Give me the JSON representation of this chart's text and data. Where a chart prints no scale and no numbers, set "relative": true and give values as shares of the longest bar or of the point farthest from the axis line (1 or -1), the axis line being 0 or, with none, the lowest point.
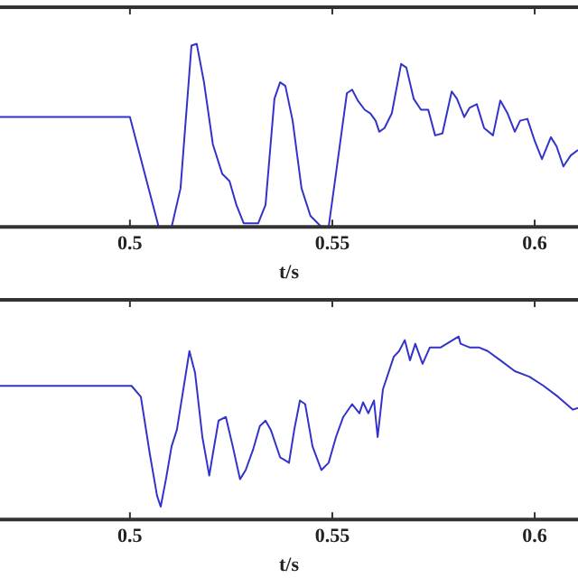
{
  "chart_data": [
    {
      "type": "line",
      "xlabel": "t/s",
      "relative": true,
      "xlim": [
        0.4679,
        0.6107
      ],
      "xticks": [
        0.5,
        0.55,
        0.6
      ],
      "grid": false,
      "legend": false,
      "marker": "none",
      "line_style": "solid",
      "series": [
        {
          "color": "#3333cc",
          "x": [
            0.4679,
            0.5,
            0.5071,
            0.5103,
            0.5125,
            0.5152,
            0.5165,
            0.5183,
            0.5205,
            0.5228,
            0.5246,
            0.5263,
            0.5281,
            0.5317,
            0.5335,
            0.5357,
            0.5371,
            0.5384,
            0.5402,
            0.5424,
            0.5446,
            0.5473,
            0.5491,
            0.5509,
            0.5536,
            0.5549,
            0.5563,
            0.558,
            0.5594,
            0.5607,
            0.5616,
            0.5629,
            0.5647,
            0.567,
            0.5683,
            0.5701,
            0.5719,
            0.5737,
            0.5754,
            0.5772,
            0.5795,
            0.5808,
            0.5826,
            0.5839,
            0.5857,
            0.5875,
            0.5897,
            0.5915,
            0.5933,
            0.5951,
            0.5964,
            0.5982,
            0.6,
            0.6018,
            0.604,
            0.6054,
            0.6071,
            0.6089,
            0.6107
          ],
          "values": [
            0.6,
            0.6,
            0,
            0,
            0.21,
            0.99,
            1,
            0.79,
            0.45,
            0.29,
            0.25,
            0.12,
            0.02,
            0.02,
            0.12,
            0.7,
            0.79,
            0.77,
            0.58,
            0.21,
            0.06,
            0,
            0,
            0.29,
            0.73,
            0.75,
            0.69,
            0.64,
            0.62,
            0.58,
            0.52,
            0.54,
            0.62,
            0.89,
            0.87,
            0.7,
            0.64,
            0.64,
            0.5,
            0.51,
            0.74,
            0.7,
            0.6,
            0.65,
            0.67,
            0.54,
            0.5,
            0.69,
            0.62,
            0.52,
            0.58,
            0.59,
            0.47,
            0.37,
            0.49,
            0.44,
            0.33,
            0.39,
            0.42
          ]
        }
      ]
    },
    {
      "type": "line",
      "xlabel": "t/s",
      "relative": true,
      "xlim": [
        0.4679,
        0.6107
      ],
      "xticks": [
        0.5,
        0.55,
        0.6
      ],
      "grid": false,
      "legend": false,
      "marker": "none",
      "line_style": "solid",
      "series": [
        {
          "color": "#3333cc",
          "x": [
            0.4679,
            0.5004,
            0.5027,
            0.5049,
            0.5067,
            0.5076,
            0.5089,
            0.5103,
            0.5116,
            0.5129,
            0.5147,
            0.5161,
            0.5179,
            0.5196,
            0.5205,
            0.5219,
            0.5237,
            0.5254,
            0.5272,
            0.5286,
            0.5304,
            0.5321,
            0.5335,
            0.5348,
            0.5371,
            0.5393,
            0.5406,
            0.542,
            0.5433,
            0.5451,
            0.5473,
            0.5491,
            0.5509,
            0.5527,
            0.5549,
            0.5567,
            0.5576,
            0.5589,
            0.5603,
            0.5612,
            0.5625,
            0.5652,
            0.5665,
            0.5679,
            0.5692,
            0.5705,
            0.5723,
            0.5741,
            0.5768,
            0.5812,
            0.5817,
            0.5839,
            0.5862,
            0.5884,
            0.5915,
            0.5951,
            0.5987,
            0.6022,
            0.6058,
            0.6094,
            0.6107
          ],
          "values": [
            0.73,
            0.73,
            0.67,
            0.36,
            0.13,
            0.07,
            0.22,
            0.4,
            0.49,
            0.67,
            0.92,
            0.8,
            0.45,
            0.24,
            0.36,
            0.54,
            0.56,
            0.4,
            0.22,
            0.27,
            0.38,
            0.51,
            0.54,
            0.49,
            0.34,
            0.31,
            0.49,
            0.65,
            0.63,
            0.4,
            0.27,
            0.31,
            0.45,
            0.56,
            0.63,
            0.58,
            0.64,
            0.58,
            0.65,
            0.45,
            0.71,
            0.89,
            0.92,
            0.98,
            0.87,
            0.96,
            0.85,
            0.94,
            0.94,
            1,
            0.96,
            0.94,
            0.94,
            0.92,
            0.87,
            0.81,
            0.78,
            0.73,
            0.67,
            0.6,
            0.61
          ]
        }
      ]
    }
  ]
}
